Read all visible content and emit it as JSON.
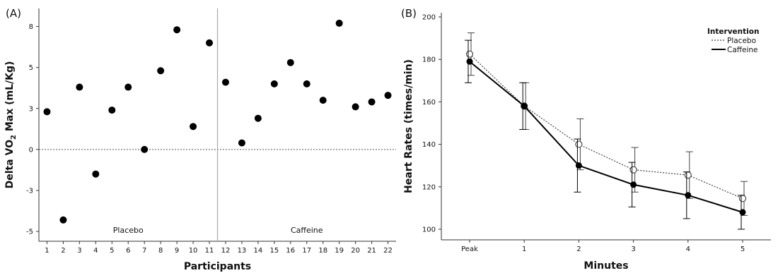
{
  "chart_data": [
    {
      "type": "scatter",
      "panel_label": "(A)",
      "title": "",
      "xlabel": "Participants",
      "ylabel": "Delta VO2 Max (mL/Kg)",
      "ylabel_parts": {
        "pre": "Delta VO",
        "sub": "2",
        "post": " Max (mL/Kg)"
      },
      "xticks": [
        "1",
        "2",
        "3",
        "4",
        "5",
        "6",
        "7",
        "8",
        "9",
        "10",
        "11",
        "12",
        "13",
        "14",
        "15",
        "16",
        "17",
        "18",
        "19",
        "20",
        "21",
        "22"
      ],
      "xlim": [
        0.5,
        22.5
      ],
      "yticks": [
        "-5",
        "-3",
        "0",
        "3",
        "5",
        "8"
      ],
      "ytick_values": [
        -5,
        -2.5,
        0,
        2.5,
        5,
        7.5
      ],
      "ylim": [
        -5.6,
        8.6
      ],
      "reference_line_y": 0,
      "group_divider_x": 11.5,
      "group_labels": [
        "Placebo",
        "Caffeine"
      ],
      "points": [
        {
          "x": 1,
          "y": 2.3
        },
        {
          "x": 2,
          "y": -4.3
        },
        {
          "x": 3,
          "y": 3.8
        },
        {
          "x": 4,
          "y": -1.5
        },
        {
          "x": 5,
          "y": 2.4
        },
        {
          "x": 6,
          "y": 3.8
        },
        {
          "x": 7,
          "y": 0.0
        },
        {
          "x": 8,
          "y": 4.8
        },
        {
          "x": 9,
          "y": 7.3
        },
        {
          "x": 10,
          "y": 1.4
        },
        {
          "x": 11,
          "y": 6.5
        },
        {
          "x": 12,
          "y": 4.1
        },
        {
          "x": 13,
          "y": 0.4
        },
        {
          "x": 14,
          "y": 1.9
        },
        {
          "x": 15,
          "y": 4.0
        },
        {
          "x": 16,
          "y": 5.3
        },
        {
          "x": 17,
          "y": 4.0
        },
        {
          "x": 18,
          "y": 3.0
        },
        {
          "x": 19,
          "y": 7.7
        },
        {
          "x": 20,
          "y": 2.6
        },
        {
          "x": 21,
          "y": 2.9
        },
        {
          "x": 22,
          "y": 3.3
        }
      ],
      "grid": false
    },
    {
      "type": "line",
      "panel_label": "(B)",
      "title": "",
      "xlabel": "Minutes",
      "ylabel": "Heart Rates (times/min)",
      "categories": [
        "Peak",
        "1",
        "2",
        "3",
        "4",
        "5"
      ],
      "yticks": [
        100,
        120,
        140,
        160,
        180,
        200
      ],
      "ylim": [
        95,
        202
      ],
      "legend": {
        "title": "Intervention",
        "position": "top-right"
      },
      "series": [
        {
          "name": "Placebo",
          "style": "dotted-line, open-circle",
          "values": [
            182.5,
            158,
            140,
            128,
            125.5,
            114.5
          ],
          "error": [
            10,
            11,
            12,
            10.5,
            11,
            8
          ]
        },
        {
          "name": "Caffeine",
          "style": "solid-line, filled-circle",
          "values": [
            179,
            158,
            130,
            121,
            116,
            108
          ],
          "error": [
            10,
            11,
            12.5,
            10.5,
            11,
            8
          ]
        }
      ],
      "grid": false
    }
  ]
}
